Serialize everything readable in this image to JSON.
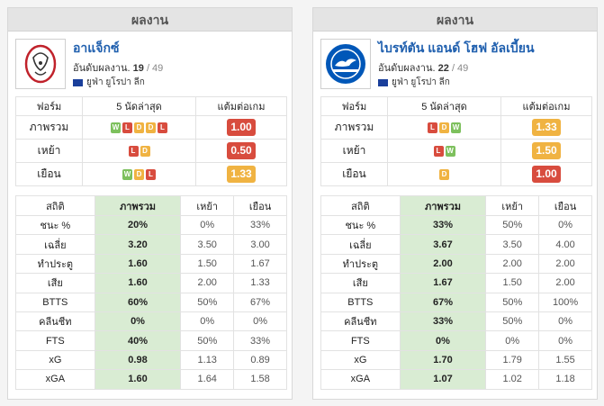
{
  "colors": {
    "win": "#7dc05d",
    "draw": "#f0b342",
    "loss": "#d84c3e",
    "ppg_red": "#d84c3e",
    "ppg_orange": "#f0b342",
    "team_name": "#1f5fae",
    "overall_bg": "#d9ecd3"
  },
  "panels": [
    {
      "header": "ผลงาน",
      "team_name": "อาแจ็กซ์",
      "rank_label": "อันดับผลงาน.",
      "rank": "19",
      "rank_total": "/ 49",
      "league": "ยูฟ่า ยูโรปา ลีก",
      "logo_icon": "ajax-logo-icon",
      "form_headers": [
        "ฟอร์ม",
        "5 นัดล่าสุด",
        "แต้มต่อเกม"
      ],
      "form_rows": [
        {
          "label": "ภาพรวม",
          "form": [
            "W",
            "L",
            "D",
            "D",
            "L"
          ],
          "ppg": "1.00",
          "ppg_color": "#d84c3e"
        },
        {
          "label": "เหย้า",
          "form": [
            "L",
            "D"
          ],
          "ppg": "0.50",
          "ppg_color": "#d84c3e"
        },
        {
          "label": "เยือน",
          "form": [
            "W",
            "D",
            "L"
          ],
          "ppg": "1.33",
          "ppg_color": "#f0b342"
        }
      ],
      "stats_headers": [
        "สถิติ",
        "ภาพรวม",
        "เหย้า",
        "เยือน"
      ],
      "stats_rows": [
        {
          "label": "ชนะ %",
          "overall": "20%",
          "home": "0%",
          "away": "33%"
        },
        {
          "label": "เฉลี่ย",
          "overall": "3.20",
          "home": "3.50",
          "away": "3.00"
        },
        {
          "label": "ทำประตู",
          "overall": "1.60",
          "home": "1.50",
          "away": "1.67"
        },
        {
          "label": "เสีย",
          "overall": "1.60",
          "home": "2.00",
          "away": "1.33"
        },
        {
          "label": "BTTS",
          "overall": "60%",
          "home": "50%",
          "away": "67%"
        },
        {
          "label": "คลีนชีท",
          "overall": "0%",
          "home": "0%",
          "away": "0%"
        },
        {
          "label": "FTS",
          "overall": "40%",
          "home": "50%",
          "away": "33%"
        },
        {
          "label": "xG",
          "overall": "0.98",
          "home": "1.13",
          "away": "0.89"
        },
        {
          "label": "xGA",
          "overall": "1.60",
          "home": "1.64",
          "away": "1.58"
        }
      ]
    },
    {
      "header": "ผลงาน",
      "team_name": "ไบรท์ตัน แอนด์ โฮฟ อัลเบี้ยน",
      "rank_label": "อันดับผลงาน.",
      "rank": "22",
      "rank_total": "/ 49",
      "league": "ยูฟ่า ยูโรปา ลีก",
      "logo_icon": "brighton-logo-icon",
      "form_headers": [
        "ฟอร์ม",
        "5 นัดล่าสุด",
        "แต้มต่อเกม"
      ],
      "form_rows": [
        {
          "label": "ภาพรวม",
          "form": [
            "L",
            "D",
            "W"
          ],
          "ppg": "1.33",
          "ppg_color": "#f0b342"
        },
        {
          "label": "เหย้า",
          "form": [
            "L",
            "W"
          ],
          "ppg": "1.50",
          "ppg_color": "#f0b342"
        },
        {
          "label": "เยือน",
          "form": [
            "D"
          ],
          "ppg": "1.00",
          "ppg_color": "#d84c3e"
        }
      ],
      "stats_headers": [
        "สถิติ",
        "ภาพรวม",
        "เหย้า",
        "เยือน"
      ],
      "stats_rows": [
        {
          "label": "ชนะ %",
          "overall": "33%",
          "home": "50%",
          "away": "0%"
        },
        {
          "label": "เฉลี่ย",
          "overall": "3.67",
          "home": "3.50",
          "away": "4.00"
        },
        {
          "label": "ทำประตู",
          "overall": "2.00",
          "home": "2.00",
          "away": "2.00"
        },
        {
          "label": "เสีย",
          "overall": "1.67",
          "home": "1.50",
          "away": "2.00"
        },
        {
          "label": "BTTS",
          "overall": "67%",
          "home": "50%",
          "away": "100%"
        },
        {
          "label": "คลีนชีท",
          "overall": "33%",
          "home": "50%",
          "away": "0%"
        },
        {
          "label": "FTS",
          "overall": "0%",
          "home": "0%",
          "away": "0%"
        },
        {
          "label": "xG",
          "overall": "1.70",
          "home": "1.79",
          "away": "1.55"
        },
        {
          "label": "xGA",
          "overall": "1.07",
          "home": "1.02",
          "away": "1.18"
        }
      ]
    }
  ]
}
